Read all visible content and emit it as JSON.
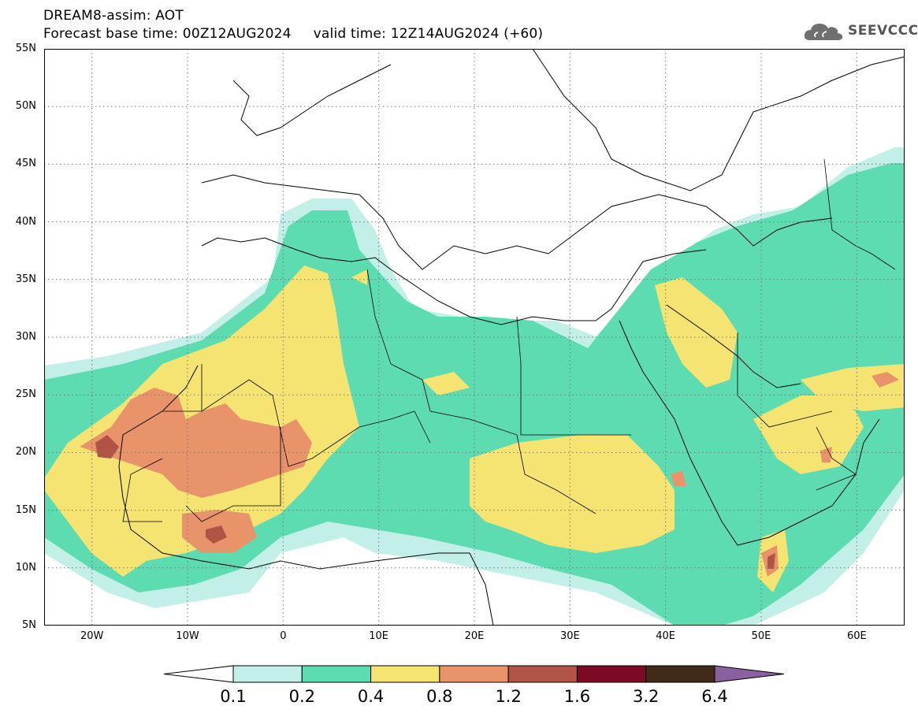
{
  "header": {
    "line1": "DREAM8-assim: AOT",
    "line2": "Forecast base time: 00Z12AUG2024     valid time: 12Z14AUG2024 (+60)"
  },
  "logo": {
    "text": "SEEVCCC",
    "icon": "cloud-icon"
  },
  "map": {
    "lat_range": [
      5,
      55
    ],
    "lon_range": [
      -25,
      65
    ],
    "lat_labels": [
      "55N",
      "50N",
      "45N",
      "40N",
      "35N",
      "30N",
      "25N",
      "20N",
      "15N",
      "10N",
      "5N"
    ],
    "lon_labels": [
      "20W",
      "10W",
      "0",
      "10E",
      "20E",
      "30E",
      "40E",
      "50E",
      "60E"
    ],
    "grid": true
  },
  "colorbar": {
    "labels": [
      "0.1",
      "0.2",
      "0.4",
      "0.8",
      "1.2",
      "1.6",
      "3.2",
      "6.4"
    ],
    "colors": [
      "#ffffff",
      "#c2efe8",
      "#5ddbb1",
      "#f5e472",
      "#e9936a",
      "#b05545",
      "#7d0a25",
      "#3f2b18",
      "#8a60a0"
    ]
  }
}
